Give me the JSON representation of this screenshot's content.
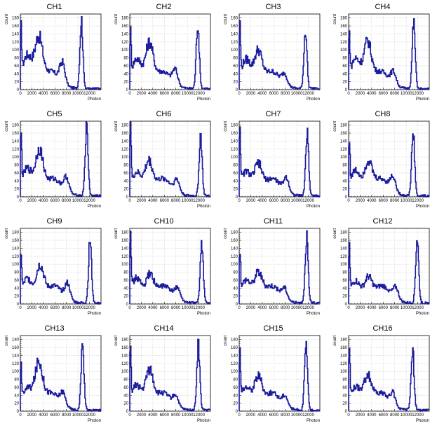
{
  "chart_data": {
    "type": "line",
    "xlabel": "Photon",
    "ylabel": "count",
    "xlim": [
      0,
      14000
    ],
    "ylim": [
      0,
      190
    ],
    "x_ticks": [
      0,
      2000,
      4000,
      6000,
      8000,
      10000,
      12000
    ],
    "y_ticks": [
      0,
      20,
      40,
      60,
      80,
      100,
      120,
      140,
      160,
      180
    ],
    "grid": true,
    "line_color": "#1a1a9c",
    "panels": [
      {
        "title": "CH1",
        "edge": 112,
        "shoulder": 80,
        "comp_x": 3200,
        "comp_h": 148,
        "mid_x": 7300,
        "mid_h": 70,
        "peak_x": 10600,
        "peak_h": 172
      },
      {
        "title": "CH2",
        "edge": 105,
        "shoulder": 72,
        "comp_x": 3400,
        "comp_h": 138,
        "mid_x": 7900,
        "mid_h": 55,
        "peak_x": 11800,
        "peak_h": 165
      },
      {
        "title": "CH3",
        "edge": 124,
        "shoulder": 70,
        "comp_x": 3300,
        "comp_h": 118,
        "mid_x": 7900,
        "mid_h": 45,
        "peak_x": 11500,
        "peak_h": 150
      },
      {
        "title": "CH4",
        "edge": 102,
        "shoulder": 72,
        "comp_x": 3300,
        "comp_h": 140,
        "mid_x": 7800,
        "mid_h": 50,
        "peak_x": 11300,
        "peak_h": 162
      },
      {
        "title": "CH5",
        "edge": 122,
        "shoulder": 65,
        "comp_x": 3300,
        "comp_h": 140,
        "mid_x": 8000,
        "mid_h": 55,
        "peak_x": 11500,
        "peak_h": 170
      },
      {
        "title": "CH6",
        "edge": 172,
        "shoulder": 55,
        "comp_x": 3300,
        "comp_h": 112,
        "mid_x": 8200,
        "mid_h": 50,
        "peak_x": 12300,
        "peak_h": 152
      },
      {
        "title": "CH7",
        "edge": 150,
        "shoulder": 58,
        "comp_x": 3300,
        "comp_h": 105,
        "mid_x": 8200,
        "mid_h": 55,
        "peak_x": 11800,
        "peak_h": 160
      },
      {
        "title": "CH8",
        "edge": 110,
        "shoulder": 60,
        "comp_x": 3400,
        "comp_h": 108,
        "mid_x": 7700,
        "mid_h": 55,
        "peak_x": 11200,
        "peak_h": 158
      },
      {
        "title": "CH9",
        "edge": 100,
        "shoulder": 58,
        "comp_x": 3400,
        "comp_h": 120,
        "mid_x": 8200,
        "mid_h": 58,
        "peak_x": 12100,
        "peak_h": 158
      },
      {
        "title": "CH10",
        "edge": 172,
        "shoulder": 60,
        "comp_x": 3500,
        "comp_h": 98,
        "mid_x": 8300,
        "mid_h": 48,
        "peak_x": 12500,
        "peak_h": 155
      },
      {
        "title": "CH11",
        "edge": 112,
        "shoulder": 55,
        "comp_x": 3300,
        "comp_h": 100,
        "mid_x": 7900,
        "mid_h": 45,
        "peak_x": 11700,
        "peak_h": 168
      },
      {
        "title": "CH12",
        "edge": 108,
        "shoulder": 52,
        "comp_x": 3400,
        "comp_h": 90,
        "mid_x": 8200,
        "mid_h": 48,
        "peak_x": 11900,
        "peak_h": 162
      },
      {
        "title": "CH13",
        "edge": 82,
        "shoulder": 52,
        "comp_x": 3200,
        "comp_h": 140,
        "mid_x": 7400,
        "mid_h": 50,
        "peak_x": 10800,
        "peak_h": 158
      },
      {
        "title": "CH14",
        "edge": 118,
        "shoulder": 60,
        "comp_x": 3400,
        "comp_h": 125,
        "mid_x": 8000,
        "mid_h": 45,
        "peak_x": 11900,
        "peak_h": 163
      },
      {
        "title": "CH15",
        "edge": 120,
        "shoulder": 55,
        "comp_x": 3300,
        "comp_h": 110,
        "mid_x": 8000,
        "mid_h": 45,
        "peak_x": 11600,
        "peak_h": 160
      },
      {
        "title": "CH16",
        "edge": 122,
        "shoulder": 55,
        "comp_x": 3300,
        "comp_h": 110,
        "mid_x": 7700,
        "mid_h": 50,
        "peak_x": 11100,
        "peak_h": 155
      }
    ]
  }
}
